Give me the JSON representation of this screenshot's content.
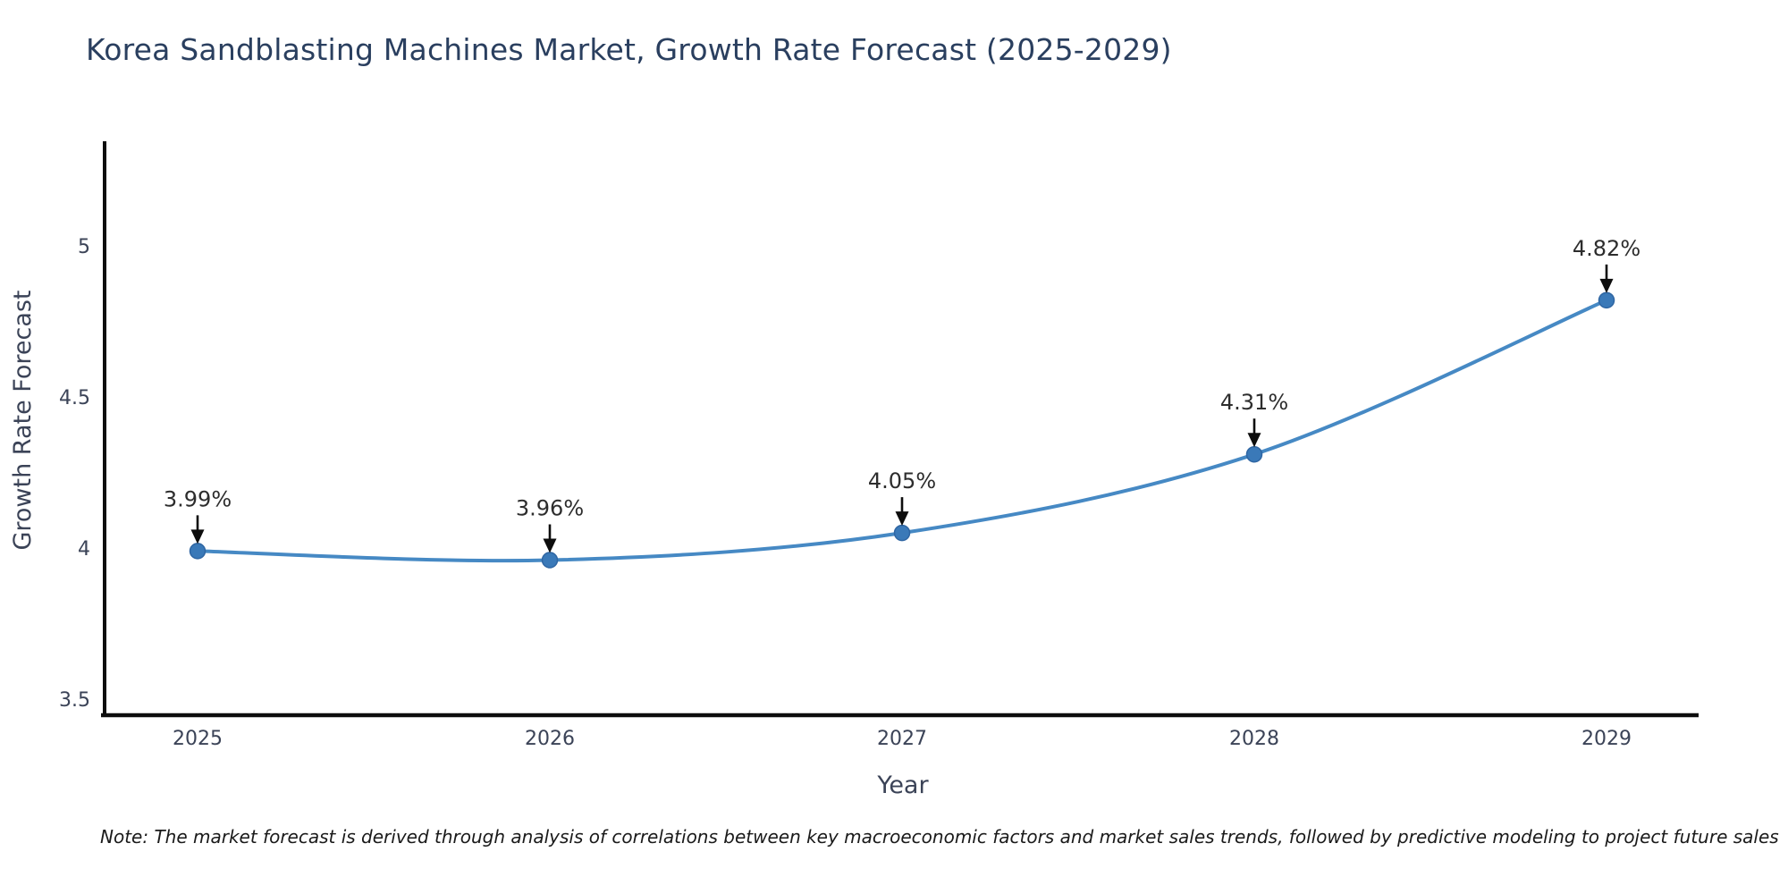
{
  "title": "Korea Sandblasting Machines Market, Growth Rate Forecast (2025-2029)",
  "note": "Note: The market forecast is derived through analysis of correlations between key macroeconomic factors and market sales trends, followed by predictive modeling to project future sales",
  "chart_data": {
    "type": "line",
    "title": "Korea Sandblasting Machines Market, Growth Rate Forecast (2025-2029)",
    "categories": [
      "2025",
      "2026",
      "2027",
      "2028",
      "2029"
    ],
    "values": [
      3.99,
      3.96,
      4.05,
      4.31,
      4.82
    ],
    "point_labels": [
      "3.99%",
      "3.96%",
      "4.05%",
      "4.31%",
      "4.82%"
    ],
    "xlabel": "Year",
    "ylabel": "Growth Rate Forecast",
    "yticks": [
      3.5,
      4,
      4.5,
      5
    ],
    "ylim": [
      3.44,
      5.41
    ],
    "grid": false,
    "legend": "none",
    "line_style": "smooth",
    "annotation_style": "black-down-arrow"
  },
  "colors": {
    "line": "#4689c4",
    "marker_fill": "#3a79b8",
    "marker_edge": "#2f66a3",
    "axis_line": "#0d0d0d",
    "title_text": "#2a3f5f",
    "axis_text": "#3b4357",
    "annotation_text": "#2d2d2d",
    "note_text": "#1a1a1a",
    "arrow": "#0d0d0d",
    "background": "#ffffff"
  }
}
